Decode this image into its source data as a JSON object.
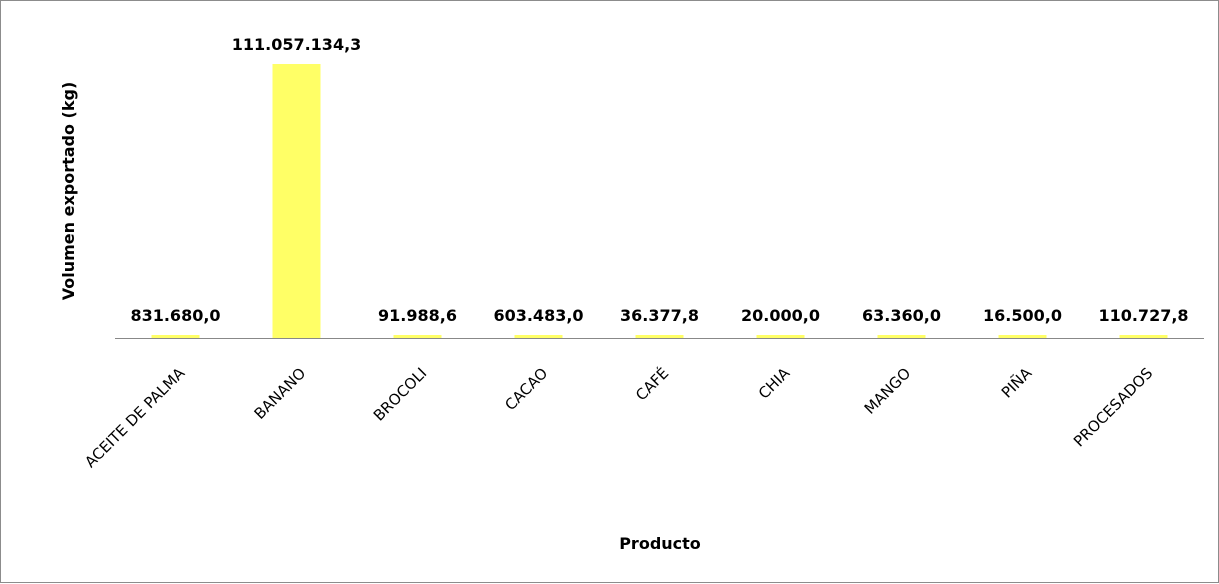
{
  "chart_data": {
    "type": "bar",
    "title": "",
    "xlabel": "Producto",
    "ylabel": "Volumen exportado (kg)",
    "categories": [
      "ACEITE DE PALMA",
      "BANANO",
      "BROCOLI",
      "CACAO",
      "CAFÉ",
      "CHIA",
      "MANGO",
      "PIÑA",
      "PROCESADOS"
    ],
    "values": [
      831680.0,
      111057134.3,
      91988.6,
      603483.0,
      36377.8,
      20000.0,
      63360.0,
      16500.0,
      110727.8
    ],
    "data_labels": [
      "831.680,0",
      "111.057.134,3",
      "91.988,6",
      "603.483,0",
      "36.377,8",
      "20.000,0",
      "63.360,0",
      "16.500,0",
      "110.727,8"
    ],
    "ylim": [
      0,
      111057134.3
    ],
    "bar_color": "#ffff66",
    "axis_color": "#888888",
    "grid": false,
    "legend": "none"
  }
}
